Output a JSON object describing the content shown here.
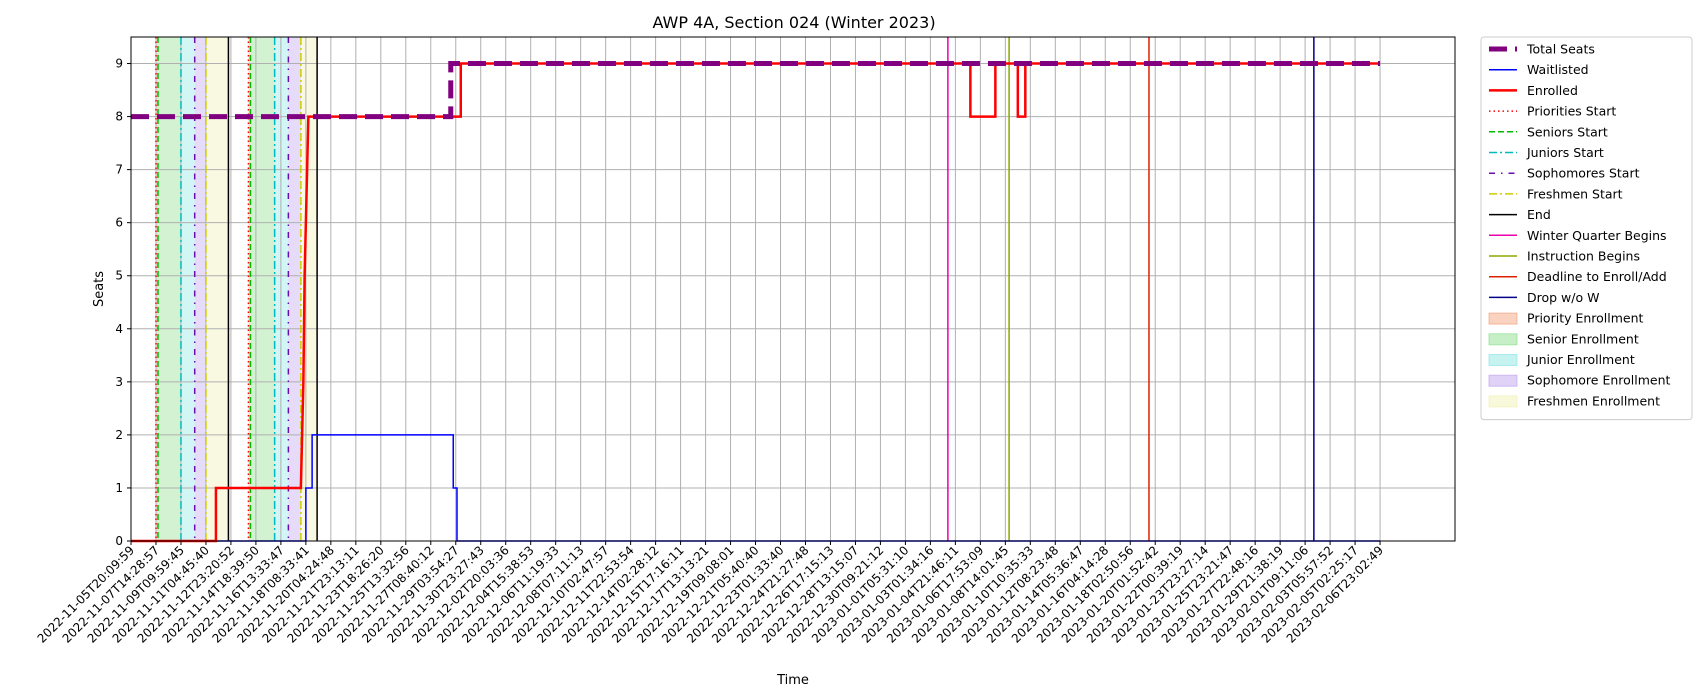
{
  "chart_data": {
    "type": "line",
    "title": "AWP 4A, Section 024 (Winter 2023)",
    "xlabel": "Time",
    "ylabel": "Seats",
    "x_index_range": [
      0,
      53
    ],
    "ylim": [
      0,
      9.5
    ],
    "yticks": [
      0,
      1,
      2,
      3,
      4,
      5,
      6,
      7,
      8,
      9
    ],
    "grid": true,
    "legend_position": "outside-right",
    "x_tick_labels": [
      "2022-11-05T20:09:59",
      "2022-11-07T14:28:57",
      "2022-11-09T09:59:45",
      "2022-11-11T04:45:40",
      "2022-11-12T23:20:52",
      "2022-11-14T18:39:50",
      "2022-11-16T13:33:47",
      "2022-11-18T08:33:41",
      "2022-11-20T04:24:48",
      "2022-11-21T23:13:11",
      "2022-11-23T18:26:20",
      "2022-11-25T13:32:56",
      "2022-11-27T08:40:12",
      "2022-11-29T03:54:27",
      "2022-11-30T23:27:43",
      "2022-12-02T20:03:36",
      "2022-12-04T15:38:53",
      "2022-12-06T11:19:33",
      "2022-12-08T07:11:13",
      "2022-12-10T02:47:57",
      "2022-12-11T22:53:54",
      "2022-12-14T02:28:12",
      "2022-12-15T17:16:11",
      "2022-12-17T13:13:21",
      "2022-12-19T09:08:01",
      "2022-12-21T05:40:40",
      "2022-12-23T01:33:40",
      "2022-12-24T21:27:48",
      "2022-12-26T17:15:13",
      "2022-12-28T13:15:07",
      "2022-12-30T09:21:12",
      "2023-01-01T05:31:10",
      "2023-01-03T01:34:16",
      "2023-01-04T21:46:11",
      "2023-01-06T17:53:09",
      "2023-01-08T14:01:45",
      "2023-01-10T10:35:33",
      "2023-01-12T08:23:48",
      "2023-01-14T05:36:47",
      "2023-01-16T04:14:28",
      "2023-01-18T02:50:56",
      "2023-01-20T01:52:42",
      "2023-01-22T00:39:19",
      "2023-01-23T23:27:14",
      "2023-01-25T23:21:47",
      "2023-01-27T22:48:16",
      "2023-01-29T21:38:19",
      "2023-02-01T09:11:06",
      "2023-02-03T05:57:52",
      "2023-02-05T02:25:17",
      "2023-02-06T23:02:49"
    ],
    "series": [
      {
        "name": "Total Seats",
        "color": "#800080",
        "style": "dashed-thick",
        "points": [
          [
            0,
            8
          ],
          [
            12.8,
            8
          ],
          [
            12.8,
            9
          ],
          [
            50,
            9
          ]
        ]
      },
      {
        "name": "Waitlisted",
        "color": "#0000ff",
        "style": "solid",
        "points": [
          [
            0,
            0
          ],
          [
            7.0,
            0
          ],
          [
            7.0,
            1
          ],
          [
            7.25,
            1
          ],
          [
            7.25,
            2
          ],
          [
            12.9,
            2
          ],
          [
            12.9,
            1
          ],
          [
            13.05,
            1
          ],
          [
            13.05,
            0
          ],
          [
            50,
            0
          ]
        ]
      },
      {
        "name": "Enrolled",
        "color": "#ff0000",
        "style": "solid-thick",
        "points": [
          [
            0,
            0
          ],
          [
            3.4,
            0
          ],
          [
            3.4,
            1
          ],
          [
            6.8,
            1
          ],
          [
            6.85,
            2
          ],
          [
            6.9,
            3
          ],
          [
            6.95,
            5
          ],
          [
            7.0,
            6
          ],
          [
            7.05,
            7
          ],
          [
            7.1,
            8
          ],
          [
            13.2,
            8
          ],
          [
            13.2,
            9
          ],
          [
            33.6,
            9
          ],
          [
            33.6,
            8
          ],
          [
            34.6,
            8
          ],
          [
            34.6,
            9
          ],
          [
            35.5,
            9
          ],
          [
            35.5,
            8
          ],
          [
            35.8,
            8
          ],
          [
            35.8,
            9
          ],
          [
            50,
            9
          ]
        ]
      }
    ],
    "markers": [
      {
        "name": "Priorities Start",
        "color": "#ff0000",
        "style": "dotted",
        "x": [
          1.0,
          4.7
        ]
      },
      {
        "name": "Seniors Start",
        "color": "#00bb00",
        "style": "dashed",
        "x": [
          1.08,
          4.78
        ]
      },
      {
        "name": "Juniors Start",
        "color": "#00bbbb",
        "style": "dashdot",
        "x": [
          2.0,
          5.75
        ]
      },
      {
        "name": "Sophomores Start",
        "color": "#6a0dad",
        "style": "dashdot-sparse",
        "x": [
          2.55,
          6.3
        ]
      },
      {
        "name": "Freshmen Start",
        "color": "#cccc00",
        "style": "dashdot",
        "x": [
          3.0,
          6.8
        ]
      },
      {
        "name": "End",
        "color": "#000000",
        "style": "solid",
        "x": [
          3.9,
          7.45
        ]
      },
      {
        "name": "Winter Quarter Begins",
        "color": "#ee00aa",
        "style": "solid",
        "x": [
          32.7
        ]
      },
      {
        "name": "Instruction Begins",
        "color": "#88aa00",
        "style": "solid",
        "x": [
          35.15
        ]
      },
      {
        "name": "Deadline to Enroll/Add",
        "color": "#dd2200",
        "style": "solid",
        "x": [
          40.75
        ]
      },
      {
        "name": "Drop w/o W",
        "color": "#000088",
        "style": "solid",
        "x": [
          47.35
        ]
      }
    ],
    "spans": [
      {
        "name": "Priority Enrollment",
        "color": "#f4a582",
        "x": [
          [
            1.0,
            1.08
          ],
          [
            4.7,
            4.78
          ]
        ]
      },
      {
        "name": "Senior Enrollment",
        "color": "#8fdf8f",
        "x": [
          [
            1.08,
            2.0
          ],
          [
            4.78,
            5.75
          ]
        ]
      },
      {
        "name": "Junior Enrollment",
        "color": "#8fe5e5",
        "x": [
          [
            2.0,
            2.55
          ],
          [
            5.75,
            6.3
          ]
        ]
      },
      {
        "name": "Sophomore Enrollment",
        "color": "#c1a5ee",
        "x": [
          [
            2.55,
            3.0
          ],
          [
            6.3,
            6.8
          ]
        ]
      },
      {
        "name": "Freshmen Enrollment",
        "color": "#f1f1b5",
        "x": [
          [
            3.0,
            3.9
          ],
          [
            6.8,
            7.45
          ]
        ]
      }
    ],
    "legend": [
      {
        "label": "Total Seats",
        "kind": "line",
        "color": "#800080",
        "style": "dashed-thick"
      },
      {
        "label": "Waitlisted",
        "kind": "line",
        "color": "#0000ff",
        "style": "solid"
      },
      {
        "label": "Enrolled",
        "kind": "line",
        "color": "#ff0000",
        "style": "solid-thick"
      },
      {
        "label": "Priorities Start",
        "kind": "line",
        "color": "#ff0000",
        "style": "dotted"
      },
      {
        "label": "Seniors Start",
        "kind": "line",
        "color": "#00bb00",
        "style": "dashed"
      },
      {
        "label": "Juniors Start",
        "kind": "line",
        "color": "#00bbbb",
        "style": "dashdot"
      },
      {
        "label": "Sophomores Start",
        "kind": "line",
        "color": "#6a0dad",
        "style": "dashdot-sparse"
      },
      {
        "label": "Freshmen Start",
        "kind": "line",
        "color": "#cccc00",
        "style": "dashdot"
      },
      {
        "label": "End",
        "kind": "line",
        "color": "#000000",
        "style": "solid"
      },
      {
        "label": "Winter Quarter Begins",
        "kind": "line",
        "color": "#ee00aa",
        "style": "solid"
      },
      {
        "label": "Instruction Begins",
        "kind": "line",
        "color": "#88aa00",
        "style": "solid"
      },
      {
        "label": "Deadline to Enroll/Add",
        "kind": "line",
        "color": "#dd2200",
        "style": "solid"
      },
      {
        "label": "Drop w/o W",
        "kind": "line",
        "color": "#000088",
        "style": "solid"
      },
      {
        "label": "Priority Enrollment",
        "kind": "patch",
        "color": "#f4a582"
      },
      {
        "label": "Senior Enrollment",
        "kind": "patch",
        "color": "#8fdf8f"
      },
      {
        "label": "Junior Enrollment",
        "kind": "patch",
        "color": "#8fe5e5"
      },
      {
        "label": "Sophomore Enrollment",
        "kind": "patch",
        "color": "#c1a5ee"
      },
      {
        "label": "Freshmen Enrollment",
        "kind": "patch",
        "color": "#f1f1b5"
      }
    ]
  }
}
